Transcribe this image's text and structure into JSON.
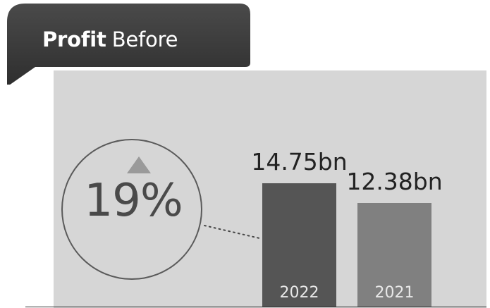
{
  "header": {
    "title_bold": "Profit",
    "title_light": "Before"
  },
  "growth": {
    "value": "19%",
    "direction": "up"
  },
  "colors": {
    "tab": "#3d3d3d",
    "panel": "#d6d6d6",
    "bar_2022": "#555555",
    "bar_2021": "#808080",
    "triangle": "#9a9a9a"
  },
  "chart_data": {
    "type": "bar",
    "categories": [
      "2022",
      "2021"
    ],
    "values": [
      14.75,
      12.38
    ],
    "value_labels": [
      "14.75bn",
      "12.38bn"
    ],
    "title": "",
    "xlabel": "",
    "ylabel": "",
    "ylim": [
      0,
      20.25
    ],
    "grid": false
  }
}
